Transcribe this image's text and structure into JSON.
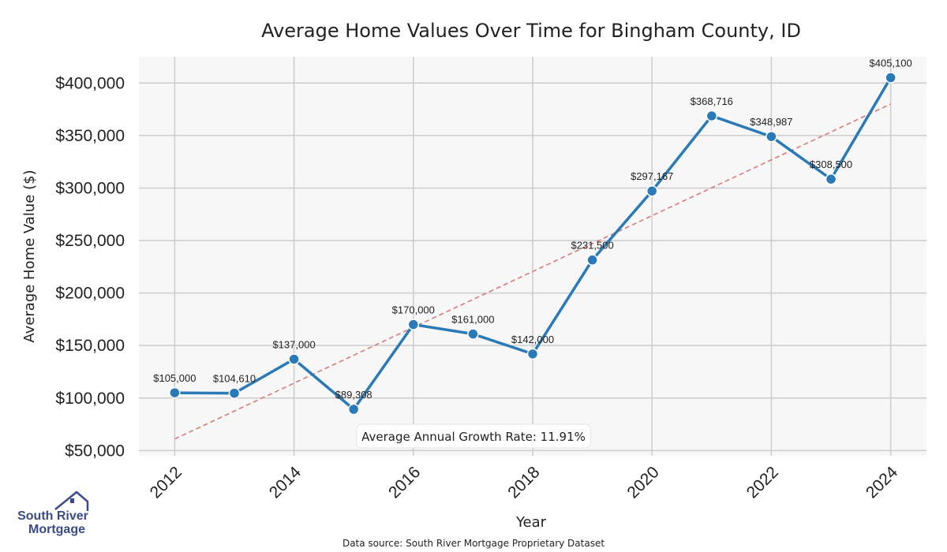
{
  "chart_data": {
    "type": "line",
    "title": "Average Home Values Over Time for Bingham County, ID",
    "xlabel": "Year",
    "ylabel": "Average Home Value ($)",
    "x": [
      2012,
      2013,
      2014,
      2015,
      2016,
      2017,
      2018,
      2019,
      2020,
      2021,
      2022,
      2023,
      2024
    ],
    "values": [
      105000,
      104610,
      137000,
      89308,
      170000,
      161000,
      142000,
      231500,
      297167,
      368716,
      348987,
      308500,
      405100
    ],
    "data_labels": [
      "$105,000",
      "$104,610",
      "$137,000",
      "$89,308",
      "$170,000",
      "$161,000",
      "$142,000",
      "$231,500",
      "$297,167",
      "$368,716",
      "$348,987",
      "$308,500",
      "$405,100"
    ],
    "x_ticks": [
      "2012",
      "2014",
      "2016",
      "2018",
      "2020",
      "2022",
      "2024"
    ],
    "x_tick_values": [
      2012,
      2014,
      2016,
      2018,
      2020,
      2022,
      2024
    ],
    "y_ticks": [
      "$50,000",
      "$100,000",
      "$150,000",
      "$200,000",
      "$250,000",
      "$300,000",
      "$350,000",
      "$400,000"
    ],
    "y_tick_values": [
      50000,
      100000,
      150000,
      200000,
      250000,
      300000,
      350000,
      400000
    ],
    "ylim": [
      45000,
      425000
    ],
    "xlim": [
      2011.4,
      2024.6
    ],
    "trendline": {
      "x": [
        2012,
        2024
      ],
      "values": [
        61000,
        380000
      ],
      "color": "#d97a7a"
    },
    "annotation": "Average Annual Growth Rate: 11.91%",
    "grid": true,
    "line_color": "#2a7ab8"
  },
  "source_text": "Data source: South River Mortgage Proprietary Dataset",
  "logo": {
    "line1": "South River",
    "line2": "Mortgage",
    "icon": "house-roof-icon"
  }
}
